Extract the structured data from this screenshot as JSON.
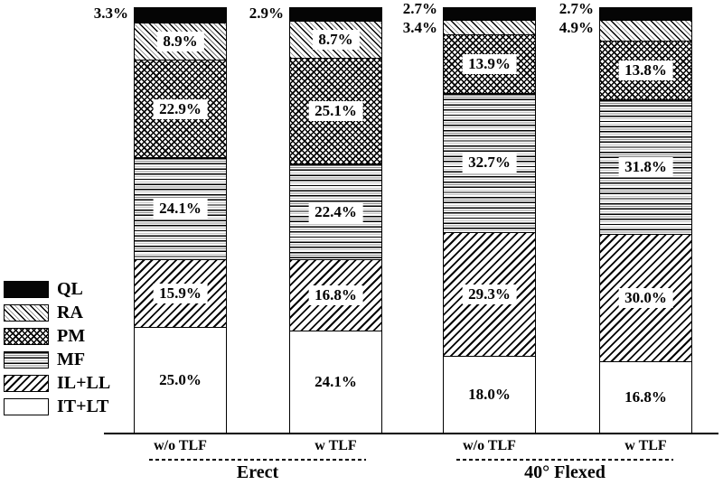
{
  "colors": {
    "ink": "#000000",
    "background": "#ffffff"
  },
  "chart_data": {
    "type": "bar",
    "stacked": true,
    "orientation": "vertical",
    "unit": "%",
    "title": "",
    "xlabel": "",
    "ylabel": "",
    "ylim": [
      0,
      100
    ],
    "grid": false,
    "legend_position": "left-middle",
    "series_order_bottom_to_top": [
      "IT+LT",
      "IL+LL",
      "MF",
      "PM",
      "RA",
      "QL"
    ],
    "series_patterns": {
      "QL": "solid-black",
      "RA": "diagonal-back-hatch",
      "PM": "crosshatch",
      "MF": "horizontal-lines",
      "IL+LL": "diagonal-forward-hatch",
      "IT+LT": "plain-white"
    },
    "groups": [
      {
        "label": "Erect",
        "categories": [
          "w/o TLF",
          "w TLF"
        ]
      },
      {
        "label": "40° Flexed",
        "categories": [
          "w/o TLF",
          "w TLF"
        ]
      }
    ],
    "bars": [
      {
        "category": "w/o TLF",
        "group": "Erect",
        "segments": [
          {
            "series": "IT+LT",
            "value": 25.0,
            "label": "25.0%",
            "label_placement": "inside"
          },
          {
            "series": "IL+LL",
            "value": 15.9,
            "label": "15.9%",
            "label_placement": "inside"
          },
          {
            "series": "MF",
            "value": 24.1,
            "label": "24.1%",
            "label_placement": "inside"
          },
          {
            "series": "PM",
            "value": 22.9,
            "label": "22.9%",
            "label_placement": "inside"
          },
          {
            "series": "RA",
            "value": 8.9,
            "label": "8.9%",
            "label_placement": "inside"
          },
          {
            "series": "QL",
            "value": 3.3,
            "label": "3.3%",
            "label_placement": "outside"
          }
        ]
      },
      {
        "category": "w TLF",
        "group": "Erect",
        "segments": [
          {
            "series": "IT+LT",
            "value": 24.1,
            "label": "24.1%",
            "label_placement": "inside"
          },
          {
            "series": "IL+LL",
            "value": 16.8,
            "label": "16.8%",
            "label_placement": "inside"
          },
          {
            "series": "MF",
            "value": 22.4,
            "label": "22.4%",
            "label_placement": "inside"
          },
          {
            "series": "PM",
            "value": 25.1,
            "label": "25.1%",
            "label_placement": "inside"
          },
          {
            "series": "RA",
            "value": 8.7,
            "label": "8.7%",
            "label_placement": "inside"
          },
          {
            "series": "QL",
            "value": 2.9,
            "label": "2.9%",
            "label_placement": "outside"
          }
        ]
      },
      {
        "category": "w/o TLF",
        "group": "40° Flexed",
        "segments": [
          {
            "series": "IT+LT",
            "value": 18.0,
            "label": "18.0%",
            "label_placement": "inside"
          },
          {
            "series": "IL+LL",
            "value": 29.3,
            "label": "29.3%",
            "label_placement": "inside"
          },
          {
            "series": "MF",
            "value": 32.7,
            "label": "32.7%",
            "label_placement": "inside"
          },
          {
            "series": "PM",
            "value": 13.9,
            "label": "13.9%",
            "label_placement": "inside"
          },
          {
            "series": "RA",
            "value": 3.4,
            "label": "3.4%",
            "label_placement": "outside"
          },
          {
            "series": "QL",
            "value": 2.7,
            "label": "2.7%",
            "label_placement": "outside"
          }
        ]
      },
      {
        "category": "w TLF",
        "group": "40° Flexed",
        "segments": [
          {
            "series": "IT+LT",
            "value": 16.8,
            "label": "16.8%",
            "label_placement": "inside"
          },
          {
            "series": "IL+LL",
            "value": 30.0,
            "label": "30.0%",
            "label_placement": "inside"
          },
          {
            "series": "MF",
            "value": 31.8,
            "label": "31.8%",
            "label_placement": "inside"
          },
          {
            "series": "PM",
            "value": 13.8,
            "label": "13.8%",
            "label_placement": "inside"
          },
          {
            "series": "RA",
            "value": 4.9,
            "label": "4.9%",
            "label_placement": "outside"
          },
          {
            "series": "QL",
            "value": 2.7,
            "label": "2.7%",
            "label_placement": "outside"
          }
        ]
      }
    ]
  },
  "legend": {
    "items": [
      {
        "label": "QL",
        "pattern": "solid-black"
      },
      {
        "label": "RA",
        "pattern": "diagonal-back-hatch"
      },
      {
        "label": "PM",
        "pattern": "crosshatch"
      },
      {
        "label": "MF",
        "pattern": "horizontal-lines"
      },
      {
        "label": "IL+LL",
        "pattern": "diagonal-forward-hatch"
      },
      {
        "label": "IT+LT",
        "pattern": "plain-white"
      }
    ]
  }
}
